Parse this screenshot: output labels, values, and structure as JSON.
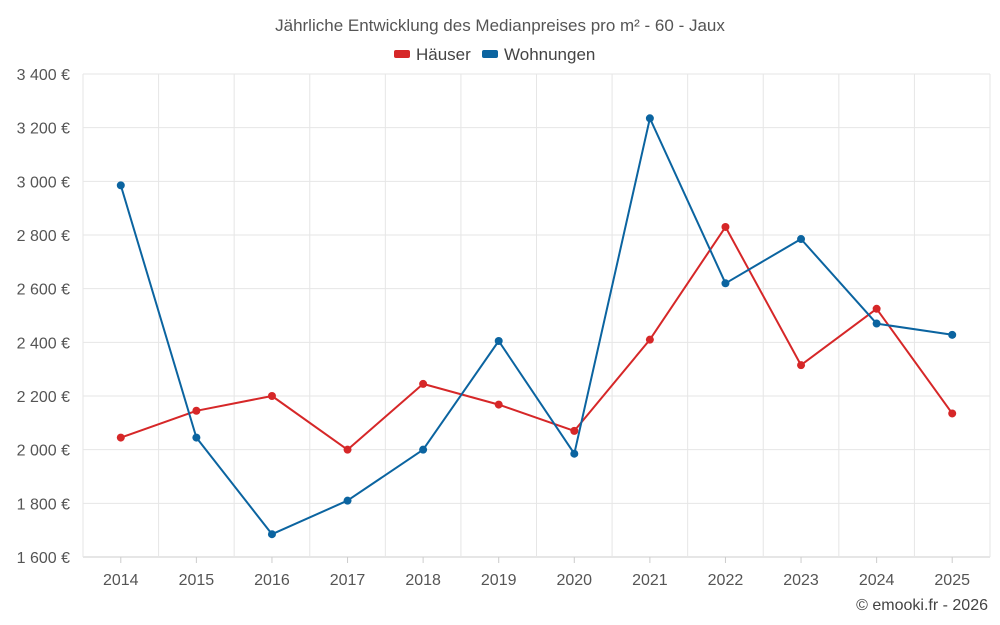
{
  "chart_data": {
    "type": "line",
    "title": "Jährliche Entwicklung des Medianpreises pro m² - 60 - Jaux",
    "x": [
      "2014",
      "2015",
      "2016",
      "2017",
      "2018",
      "2019",
      "2020",
      "2021",
      "2022",
      "2023",
      "2024",
      "2025"
    ],
    "ylim": [
      1600,
      3400
    ],
    "yticks": [
      1600,
      1800,
      2000,
      2200,
      2400,
      2600,
      2800,
      3000,
      3200,
      3400
    ],
    "ytick_labels": [
      "1 600 €",
      "1 800 €",
      "2 000 €",
      "2 200 €",
      "2 400 €",
      "2 600 €",
      "2 800 €",
      "3 000 €",
      "3 200 €",
      "3 400 €"
    ],
    "grid": true,
    "legend_position": "top-center",
    "series": [
      {
        "name": "Häuser",
        "color": "#d62728",
        "values": [
          2045,
          2145,
          2200,
          2000,
          2245,
          2168,
          2070,
          2410,
          2830,
          2315,
          2525,
          2135
        ]
      },
      {
        "name": "Wohnungen",
        "color": "#0b64a0",
        "values": [
          2985,
          2045,
          1685,
          1810,
          2000,
          2405,
          1985,
          3235,
          2620,
          2785,
          2470,
          2428
        ]
      }
    ]
  },
  "credit": "© emooki.fr - 2026"
}
